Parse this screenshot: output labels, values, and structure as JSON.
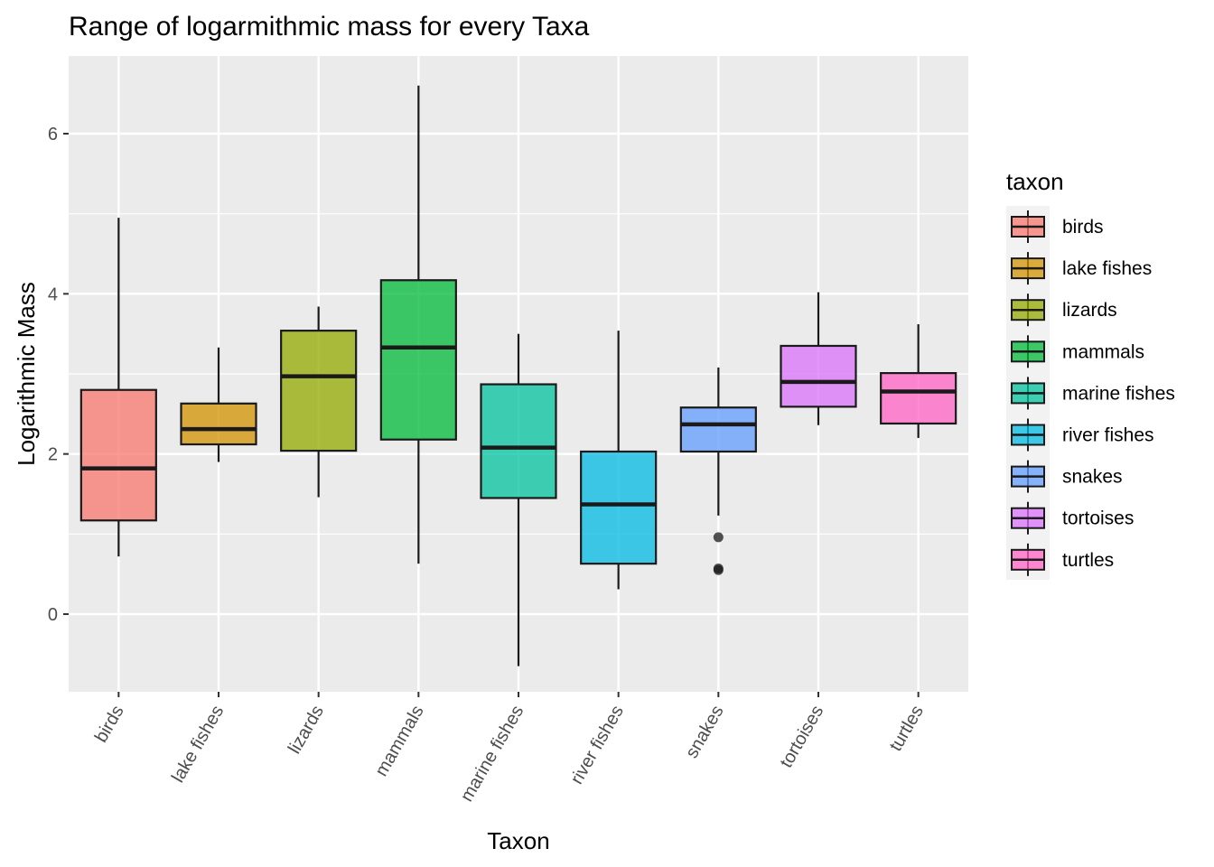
{
  "chart_data": {
    "type": "boxplot",
    "title": "Range of logarmithmic mass for every Taxa",
    "xlabel": "Taxon",
    "ylabel": "Logarithmic Mass",
    "ylim": [
      -0.97,
      6.97
    ],
    "yticks": [
      0,
      2,
      4,
      6
    ],
    "grid": true,
    "legend": {
      "title": "taxon",
      "position": "right"
    },
    "categories": [
      "birds",
      "lake fishes",
      "lizards",
      "mammals",
      "marine fishes",
      "river fishes",
      "snakes",
      "tortoises",
      "turtles"
    ],
    "colors": [
      "#F8766D",
      "#D39200",
      "#93AA00",
      "#00BA38",
      "#00C19F",
      "#00B9E3",
      "#619CFF",
      "#DB72FB",
      "#FF61C3"
    ],
    "boxes": [
      {
        "taxon": "birds",
        "whisker_low": 0.72,
        "q1": 1.17,
        "median": 1.82,
        "q3": 2.8,
        "whisker_high": 4.95,
        "outliers": []
      },
      {
        "taxon": "lake fishes",
        "whisker_low": 1.9,
        "q1": 2.12,
        "median": 2.31,
        "q3": 2.63,
        "whisker_high": 3.33,
        "outliers": []
      },
      {
        "taxon": "lizards",
        "whisker_low": 1.46,
        "q1": 2.04,
        "median": 2.97,
        "q3": 3.54,
        "whisker_high": 3.84,
        "outliers": []
      },
      {
        "taxon": "mammals",
        "whisker_low": 0.63,
        "q1": 2.18,
        "median": 3.33,
        "q3": 4.17,
        "whisker_high": 6.6,
        "outliers": []
      },
      {
        "taxon": "marine fishes",
        "whisker_low": -0.65,
        "q1": 1.45,
        "median": 2.08,
        "q3": 2.87,
        "whisker_high": 3.5,
        "outliers": []
      },
      {
        "taxon": "river fishes",
        "whisker_low": 0.31,
        "q1": 0.63,
        "median": 1.37,
        "q3": 2.03,
        "whisker_high": 3.54,
        "outliers": []
      },
      {
        "taxon": "snakes",
        "whisker_low": 1.23,
        "q1": 2.03,
        "median": 2.37,
        "q3": 2.58,
        "whisker_high": 3.08,
        "outliers": [
          0.96,
          0.55,
          0.57
        ]
      },
      {
        "taxon": "tortoises",
        "whisker_low": 2.36,
        "q1": 2.59,
        "median": 2.9,
        "q3": 3.35,
        "whisker_high": 4.02,
        "outliers": []
      },
      {
        "taxon": "turtles",
        "whisker_low": 2.2,
        "q1": 2.38,
        "median": 2.78,
        "q3": 3.01,
        "whisker_high": 3.62,
        "outliers": []
      }
    ]
  }
}
